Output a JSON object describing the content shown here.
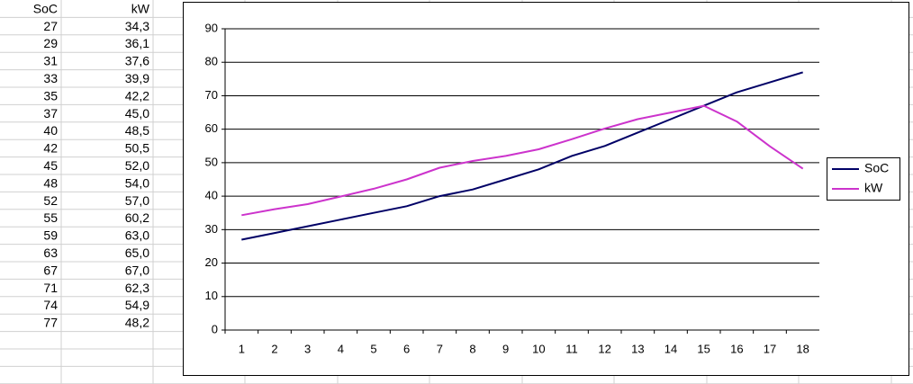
{
  "chart_data": {
    "type": "line",
    "categories": [
      1,
      2,
      3,
      4,
      5,
      6,
      7,
      8,
      9,
      10,
      11,
      12,
      13,
      14,
      15,
      16,
      17,
      18
    ],
    "series": [
      {
        "name": "SoC",
        "color": "#000066",
        "values": [
          27,
          29,
          31,
          33,
          35,
          37,
          40,
          42,
          45,
          48,
          52,
          55,
          59,
          63,
          67,
          71,
          74,
          77
        ]
      },
      {
        "name": "kW",
        "color": "#cc33cc",
        "values": [
          34.3,
          36.1,
          37.6,
          39.9,
          42.2,
          45.0,
          48.5,
          50.5,
          52.0,
          54.0,
          57.0,
          60.2,
          63.0,
          65.0,
          67.0,
          62.3,
          54.9,
          48.2
        ],
        "value_labels": [
          "34,3",
          "36,1",
          "37,6",
          "39,9",
          "42,2",
          "45,0",
          "48,5",
          "50,5",
          "52,0",
          "54,0",
          "57,0",
          "60,2",
          "63,0",
          "65,0",
          "67,0",
          "62,3",
          "54,9",
          "48,2"
        ]
      }
    ],
    "ylim": [
      0,
      90
    ],
    "yticks": [
      0,
      10,
      20,
      30,
      40,
      50,
      60,
      70,
      80,
      90
    ],
    "grid": true,
    "legend": "right"
  }
}
